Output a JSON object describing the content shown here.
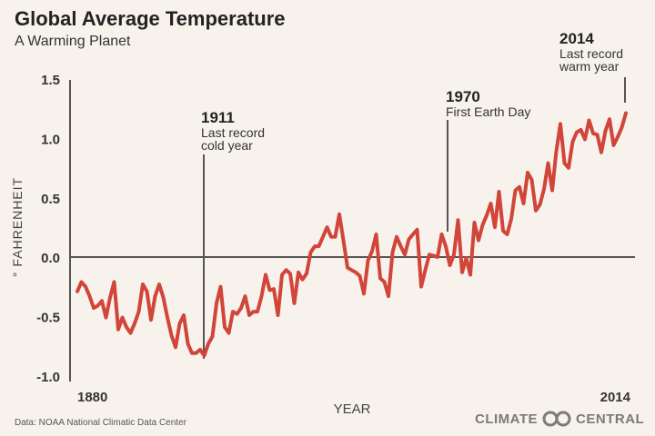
{
  "chart_data": {
    "type": "line",
    "title": "Global Average Temperature",
    "subtitle": "A Warming Planet",
    "xlabel": "YEAR",
    "ylabel": "° FAHRENHEIT",
    "xlim": [
      1880,
      2014
    ],
    "ylim": [
      -1.0,
      1.5
    ],
    "x_tick_labels": [
      "1880",
      "2014"
    ],
    "y_ticks": [
      "1.5",
      "1.0",
      "0.5",
      "0.0",
      "-0.5",
      "-1.0"
    ],
    "grid": false,
    "line_color": "#d1453a",
    "x_start": 1880,
    "values": [
      -0.28,
      -0.2,
      -0.24,
      -0.32,
      -0.42,
      -0.4,
      -0.36,
      -0.5,
      -0.33,
      -0.2,
      -0.6,
      -0.5,
      -0.58,
      -0.63,
      -0.55,
      -0.45,
      -0.22,
      -0.28,
      -0.52,
      -0.32,
      -0.22,
      -0.33,
      -0.5,
      -0.65,
      -0.75,
      -0.55,
      -0.48,
      -0.72,
      -0.8,
      -0.8,
      -0.77,
      -0.82,
      -0.72,
      -0.66,
      -0.38,
      -0.24,
      -0.58,
      -0.63,
      -0.45,
      -0.47,
      -0.42,
      -0.32,
      -0.48,
      -0.45,
      -0.45,
      -0.32,
      -0.14,
      -0.27,
      -0.26,
      -0.48,
      -0.14,
      -0.1,
      -0.13,
      -0.38,
      -0.12,
      -0.18,
      -0.13,
      0.05,
      0.1,
      0.1,
      0.18,
      0.26,
      0.18,
      0.18,
      0.37,
      0.15,
      -0.08,
      -0.1,
      -0.12,
      -0.15,
      -0.3,
      -0.02,
      0.06,
      0.2,
      -0.17,
      -0.2,
      -0.32,
      0.05,
      0.18,
      0.1,
      0.03,
      0.16,
      0.2,
      0.24,
      -0.24,
      -0.1,
      0.03,
      0.02,
      0.01,
      0.2,
      0.1,
      -0.06,
      0.03,
      0.32,
      -0.12,
      0.0,
      -0.14,
      0.3,
      0.15,
      0.28,
      0.36,
      0.46,
      0.26,
      0.56,
      0.23,
      0.2,
      0.33,
      0.57,
      0.6,
      0.46,
      0.72,
      0.66,
      0.4,
      0.45,
      0.58,
      0.8,
      0.57,
      0.9,
      1.13,
      0.8,
      0.76,
      0.98,
      1.06,
      1.08,
      1.0,
      1.16,
      1.05,
      1.04,
      0.89,
      1.07,
      1.17,
      0.95,
      1.02,
      1.1,
      1.22
    ],
    "annotations": [
      {
        "year": "1911",
        "text1": "Last record",
        "text2": "cold year"
      },
      {
        "year": "1970",
        "text1": "First Earth Day",
        "text2": ""
      },
      {
        "year": "2014",
        "text1": "Last record",
        "text2": "warm  year"
      }
    ]
  },
  "source": "Data: NOAA National Climatic Data Center",
  "logo": {
    "left": "CLIMATE",
    "right": "CENTRAL"
  }
}
